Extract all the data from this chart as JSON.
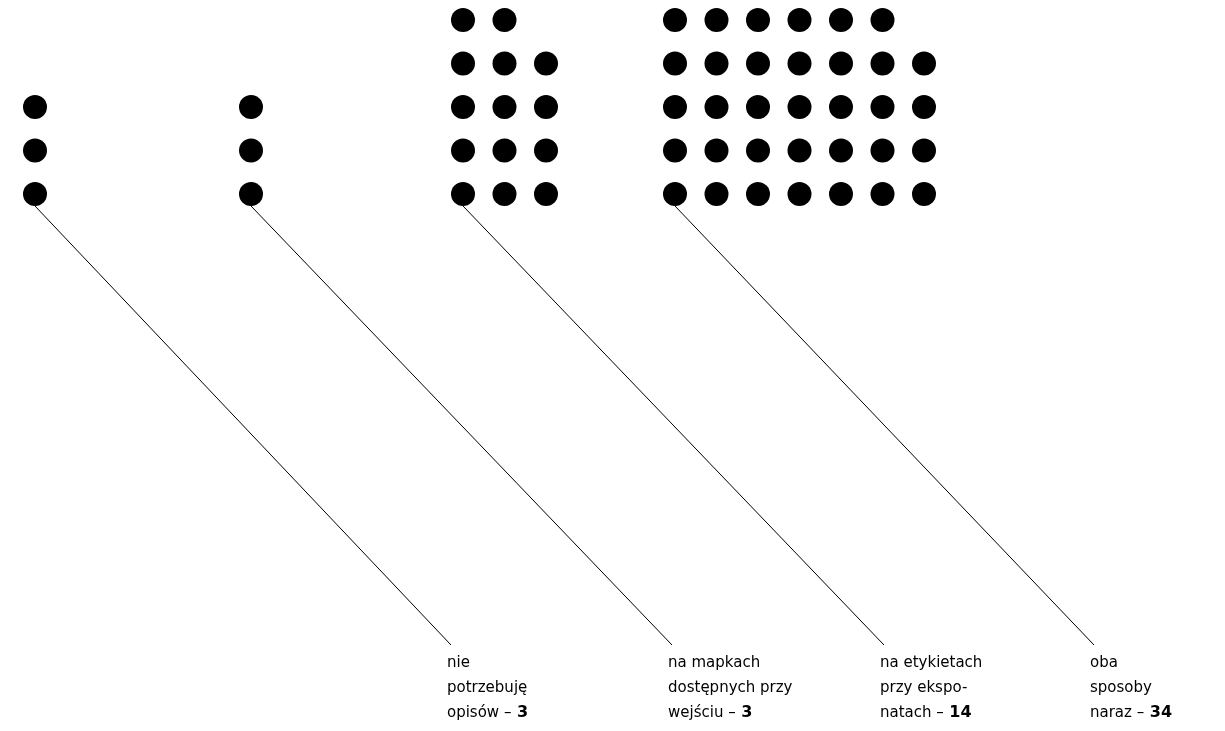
{
  "chart_data": {
    "type": "other",
    "categories": [
      "nie\npotrzebuję\nopisów –",
      "na mapkach\ndostępnych przy\nwejściu –",
      "na etykietach\nprzy ekspo-\nnatach –",
      "oba\nsposoby\nnaraz –"
    ],
    "values": [
      3,
      3,
      14,
      34
    ],
    "data_labels": true,
    "color": "#000000"
  }
}
